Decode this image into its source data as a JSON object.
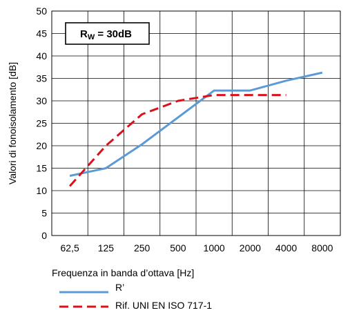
{
  "chart_data": {
    "type": "line",
    "title": "",
    "xlabel": "Frequenza in banda d’ottava [Hz]",
    "ylabel": "Valori di fonoisolamento [dB]",
    "categories": [
      "62,5",
      "125",
      "250",
      "500",
      "1000",
      "2000",
      "4000",
      "8000"
    ],
    "ylim": [
      0,
      50
    ],
    "yticks": [
      0,
      5,
      10,
      15,
      20,
      25,
      30,
      35,
      40,
      45,
      50
    ],
    "grid": true,
    "legend_position": "bottom-left",
    "annotation": {
      "main": "R",
      "sub": "W",
      "rest": " = 30dB"
    },
    "series": [
      {
        "name": "R’",
        "color": "#5b9bd5",
        "style": "solid",
        "points": [
          [
            0,
            13.3
          ],
          [
            1,
            15.0
          ],
          [
            2,
            20.3
          ],
          [
            3,
            26.3
          ],
          [
            4,
            32.3
          ],
          [
            5,
            32.3
          ],
          [
            6,
            34.5
          ],
          [
            7,
            36.3
          ]
        ]
      },
      {
        "name": "Rif. UNI EN ISO 717-1",
        "color": "#d9111a",
        "style": "dashed",
        "points": [
          [
            0,
            11.0
          ],
          [
            1,
            20.0
          ],
          [
            2,
            27.0
          ],
          [
            3,
            30.0
          ],
          [
            4,
            31.3
          ],
          [
            5,
            31.3
          ],
          [
            6,
            31.3
          ]
        ]
      }
    ]
  }
}
